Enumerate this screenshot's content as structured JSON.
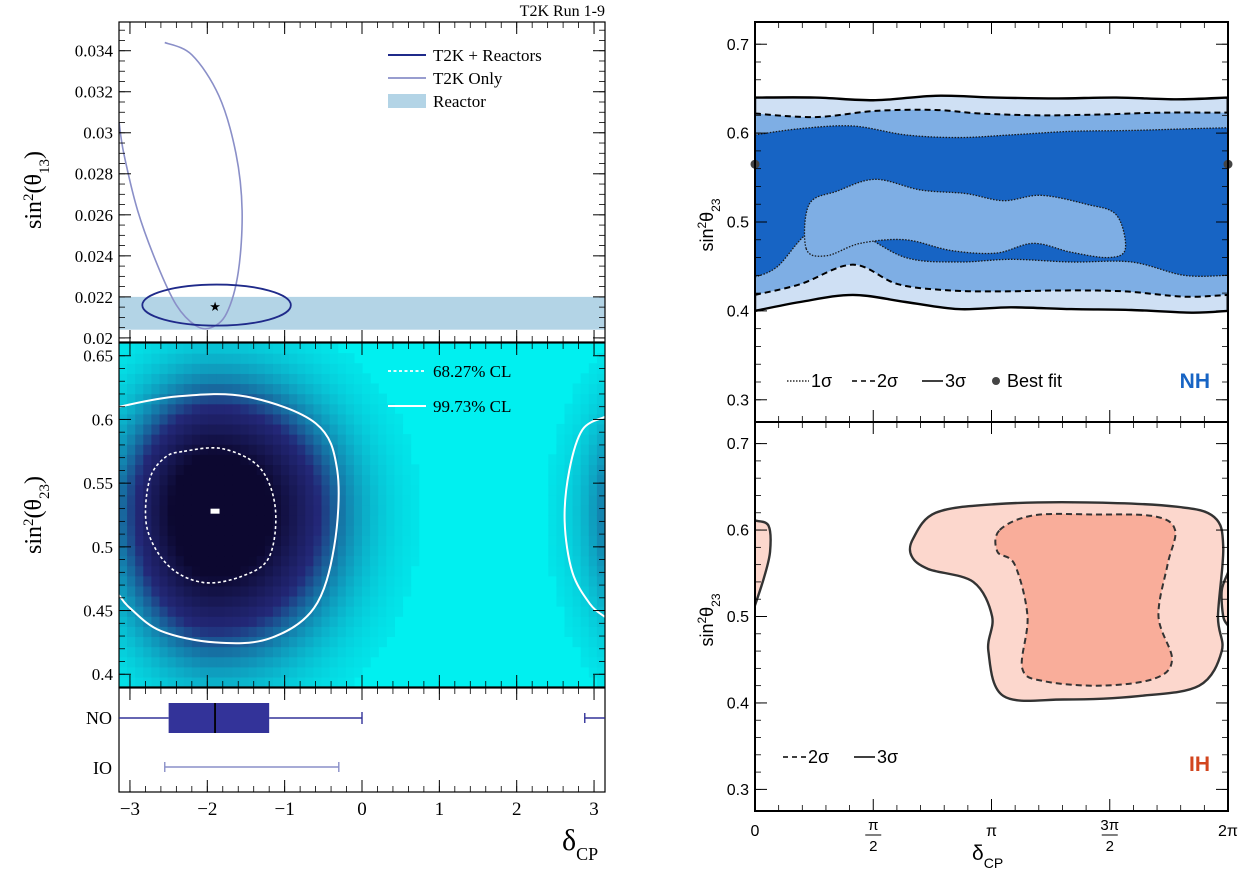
{
  "colors": {
    "t2k_reactors": "#1f2a8a",
    "t2k_only": "#8a8fc8",
    "reactor_band": "#b3d4e6",
    "posterior_bg": "#00f0f0",
    "posterior_core": "#0c0830",
    "box_fill": "#333399",
    "nh_1sigma": "#1764c4",
    "nh_2sigma": "#7eaee4",
    "nh_3sigma": "#cfe0f4",
    "ih_2sigma": "#f9ad9a",
    "ih_3sigma": "#fcd7cd",
    "nh_label": "#1764c4",
    "ih_label": "#d2451e"
  },
  "chart_data": [
    {
      "id": "left-top",
      "type": "contour",
      "title": "T2K Run 1-9",
      "ylabel_main": "sin",
      "ylabel_sup": "2",
      "ylabel_tail": "(θ",
      "ylabel_sub": "13",
      "ylabel_close": ")",
      "xlim": [
        -3.14159,
        3.14159
      ],
      "ylim": [
        0.0198,
        0.0354
      ],
      "yticks": [
        0.02,
        0.022,
        0.024,
        0.026,
        0.028,
        0.03,
        0.032,
        0.034
      ],
      "yticklabels": [
        "0.02",
        "0.022",
        "0.024",
        "0.026",
        "0.028",
        "0.03",
        "0.032",
        "0.034"
      ],
      "reactor_band": [
        0.0204,
        0.022
      ],
      "best_fit": {
        "x": -1.9,
        "y": 0.02155
      },
      "legend": {
        "position": "top-right",
        "entries": [
          "T2K + Reactors",
          "T2K Only",
          "Reactor"
        ]
      },
      "series": [
        {
          "name": "T2K Only",
          "points": [
            [
              -2.55,
              0.0344
            ],
            [
              -2.2,
              0.0338
            ],
            [
              -1.85,
              0.0318
            ],
            [
              -1.63,
              0.029
            ],
            [
              -1.55,
              0.0262
            ],
            [
              -1.6,
              0.0232
            ],
            [
              -1.75,
              0.0212
            ],
            [
              -1.95,
              0.0205
            ],
            [
              -2.15,
              0.0206
            ],
            [
              -2.4,
              0.0216
            ],
            [
              -2.65,
              0.0236
            ],
            [
              -2.9,
              0.0262
            ],
            [
              -3.08,
              0.029
            ],
            [
              -3.14,
              0.0305
            ]
          ],
          "wrap_points": [
            [
              3.14,
              0.0305
            ],
            [
              3.14,
              0.0298
            ]
          ]
        },
        {
          "name": "T2K + Reactors",
          "ellipse": {
            "cx": -1.88,
            "cy": 0.0216,
            "rx": 0.96,
            "ry": 0.001
          }
        }
      ]
    },
    {
      "id": "left-middle",
      "type": "heatmap",
      "ylabel_main": "sin",
      "ylabel_sup": "2",
      "ylabel_tail": "(θ",
      "ylabel_sub": "23",
      "ylabel_close": ")",
      "xlim": [
        -3.14159,
        3.14159
      ],
      "ylim": [
        0.39,
        0.66
      ],
      "yticks": [
        0.4,
        0.45,
        0.5,
        0.55,
        0.6,
        0.65
      ],
      "yticklabels": [
        "0.4",
        "0.45",
        "0.5",
        "0.55",
        "0.6",
        "0.65"
      ],
      "peak": {
        "x": -1.9,
        "y": 0.528
      },
      "legend": {
        "position": "top-right",
        "entries": [
          "68.27% CL",
          "99.73% CL"
        ]
      },
      "contour_68": [
        [
          -2.3,
          0.575
        ],
        [
          -1.8,
          0.577
        ],
        [
          -1.32,
          0.562
        ],
        [
          -1.12,
          0.53
        ],
        [
          -1.2,
          0.492
        ],
        [
          -1.55,
          0.477
        ],
        [
          -2.05,
          0.472
        ],
        [
          -2.5,
          0.485
        ],
        [
          -2.78,
          0.515
        ],
        [
          -2.75,
          0.552
        ],
        [
          -2.55,
          0.57
        ]
      ],
      "contour_997": [
        [
          -3.14,
          0.61
        ],
        [
          -2.4,
          0.618
        ],
        [
          -1.5,
          0.618
        ],
        [
          -0.6,
          0.597
        ],
        [
          -0.32,
          0.56
        ],
        [
          -0.36,
          0.5
        ],
        [
          -0.62,
          0.452
        ],
        [
          -1.2,
          0.428
        ],
        [
          -1.9,
          0.425
        ],
        [
          -2.6,
          0.434
        ],
        [
          -3.0,
          0.452
        ],
        [
          -3.14,
          0.462
        ]
      ],
      "contour_997_wrap": [
        [
          3.14,
          0.602
        ],
        [
          2.85,
          0.592
        ],
        [
          2.68,
          0.56
        ],
        [
          2.62,
          0.52
        ],
        [
          2.72,
          0.48
        ],
        [
          2.95,
          0.455
        ],
        [
          3.14,
          0.445
        ]
      ]
    },
    {
      "id": "left-bottom",
      "type": "box",
      "xlabel_main": "δ",
      "xlabel_sub": "CP",
      "xlim": [
        -3.14159,
        3.14159
      ],
      "xticks": [
        -3,
        -2,
        -1,
        0,
        1,
        2,
        3
      ],
      "xticklabels": [
        "−3",
        "−2",
        "−1",
        "0",
        "1",
        "2",
        "3"
      ],
      "categories": [
        "NO",
        "IO"
      ],
      "NO": {
        "whisker_low": -3.14,
        "q1": -2.5,
        "median": -1.9,
        "q3": -1.2,
        "whisker_high": 0.0,
        "wrap_low": 2.88,
        "wrap_high": 3.14
      },
      "IO": {
        "whisker_low": -2.55,
        "whisker_high": -0.3
      }
    },
    {
      "id": "right-top",
      "type": "contour",
      "ylabel_main": "sin",
      "ylabel_sup": "2",
      "ylabel_tail": "θ",
      "ylabel_sub": "23",
      "xlim": [
        0,
        6.28318
      ],
      "ylim": [
        0.275,
        0.725
      ],
      "yticks": [
        0.3,
        0.4,
        0.5,
        0.6,
        0.7
      ],
      "yticklabels": [
        "0.3",
        "0.4",
        "0.5",
        "0.6",
        "0.7"
      ],
      "hierarchy_label": "NH",
      "legend": {
        "position": "bottom-left",
        "entries": [
          "1σ",
          "2σ",
          "3σ",
          "Best fit"
        ]
      },
      "best_fit": [
        {
          "x": 0,
          "y": 0.565
        },
        {
          "x": 6.28318,
          "y": 0.565
        }
      ],
      "sigma3_upper": [
        [
          0,
          0.64
        ],
        [
          0.8,
          0.64
        ],
        [
          1.6,
          0.637
        ],
        [
          2.4,
          0.642
        ],
        [
          3.2,
          0.64
        ],
        [
          4.0,
          0.639
        ],
        [
          4.8,
          0.64
        ],
        [
          5.6,
          0.638
        ],
        [
          6.28,
          0.64
        ]
      ],
      "sigma3_lower": [
        [
          0,
          0.4
        ],
        [
          0.6,
          0.41
        ],
        [
          1.3,
          0.418
        ],
        [
          2.0,
          0.41
        ],
        [
          2.7,
          0.402
        ],
        [
          3.4,
          0.404
        ],
        [
          4.2,
          0.402
        ],
        [
          5.0,
          0.401
        ],
        [
          5.8,
          0.398
        ],
        [
          6.28,
          0.4
        ]
      ],
      "sigma2_upper": [
        [
          0,
          0.622
        ],
        [
          0.8,
          0.618
        ],
        [
          1.6,
          0.625
        ],
        [
          2.4,
          0.626
        ],
        [
          3.0,
          0.622
        ],
        [
          3.8,
          0.62
        ],
        [
          4.6,
          0.621
        ],
        [
          5.4,
          0.623
        ],
        [
          6.28,
          0.623
        ]
      ],
      "sigma2_lower": [
        [
          0,
          0.418
        ],
        [
          0.6,
          0.43
        ],
        [
          1.3,
          0.452
        ],
        [
          1.9,
          0.43
        ],
        [
          2.6,
          0.423
        ],
        [
          3.3,
          0.422
        ],
        [
          4.1,
          0.423
        ],
        [
          4.9,
          0.422
        ],
        [
          5.7,
          0.416
        ],
        [
          6.28,
          0.418
        ]
      ],
      "sigma1_upper": [
        [
          0,
          0.598
        ],
        [
          0.6,
          0.605
        ],
        [
          1.3,
          0.608
        ],
        [
          2.0,
          0.598
        ],
        [
          2.7,
          0.595
        ],
        [
          3.4,
          0.598
        ],
        [
          4.2,
          0.602
        ],
        [
          5.0,
          0.603
        ],
        [
          5.8,
          0.605
        ],
        [
          6.28,
          0.606
        ]
      ],
      "sigma1_lower": [
        [
          0,
          0.438
        ],
        [
          0.3,
          0.45
        ],
        [
          0.75,
          0.49
        ],
        [
          1.3,
          0.49
        ],
        [
          2.0,
          0.46
        ],
        [
          2.7,
          0.455
        ],
        [
          3.4,
          0.458
        ],
        [
          4.2,
          0.455
        ],
        [
          5.0,
          0.455
        ],
        [
          5.7,
          0.44
        ],
        [
          6.28,
          0.44
        ]
      ],
      "sigma1_island": [
        [
          0.68,
          0.47
        ],
        [
          0.72,
          0.52
        ],
        [
          1.1,
          0.535
        ],
        [
          1.6,
          0.548
        ],
        [
          2.2,
          0.536
        ],
        [
          2.8,
          0.532
        ],
        [
          3.3,
          0.524
        ],
        [
          3.8,
          0.53
        ],
        [
          4.4,
          0.52
        ],
        [
          4.8,
          0.508
        ],
        [
          4.92,
          0.47
        ],
        [
          4.7,
          0.46
        ],
        [
          4.2,
          0.466
        ],
        [
          3.7,
          0.476
        ],
        [
          3.2,
          0.465
        ],
        [
          2.6,
          0.468
        ],
        [
          2.0,
          0.48
        ],
        [
          1.4,
          0.476
        ],
        [
          0.95,
          0.462
        ]
      ]
    },
    {
      "id": "right-bottom",
      "type": "contour",
      "ylabel_main": "sin",
      "ylabel_sup": "2",
      "ylabel_tail": "θ",
      "ylabel_sub": "23",
      "xlabel_main": "δ",
      "xlabel_sub": "CP",
      "xlim": [
        0,
        6.28318
      ],
      "ylim": [
        0.275,
        0.725
      ],
      "yticks": [
        0.3,
        0.4,
        0.5,
        0.6,
        0.7
      ],
      "yticklabels": [
        "0.3",
        "0.4",
        "0.5",
        "0.6",
        "0.7"
      ],
      "xticks": [
        0,
        1.5708,
        3.14159,
        4.71239,
        6.28318
      ],
      "xticklabels": [
        "0",
        "π/2",
        "π",
        "3π/2",
        "2π"
      ],
      "hierarchy_label": "IH",
      "legend": {
        "position": "bottom-left",
        "entries": [
          "2σ",
          "3σ"
        ]
      },
      "sigma3_main": [
        [
          2.1,
          0.59
        ],
        [
          2.4,
          0.62
        ],
        [
          3.2,
          0.63
        ],
        [
          4.4,
          0.632
        ],
        [
          5.6,
          0.627
        ],
        [
          6.1,
          0.615
        ],
        [
          6.22,
          0.58
        ],
        [
          6.15,
          0.5
        ],
        [
          6.2,
          0.46
        ],
        [
          5.9,
          0.42
        ],
        [
          5.1,
          0.408
        ],
        [
          4.1,
          0.404
        ],
        [
          3.3,
          0.408
        ],
        [
          3.1,
          0.46
        ],
        [
          3.15,
          0.5
        ],
        [
          2.9,
          0.54
        ],
        [
          2.3,
          0.555
        ],
        [
          2.08,
          0.57
        ]
      ],
      "sigma2_main": [
        [
          3.25,
          0.6
        ],
        [
          3.7,
          0.617
        ],
        [
          4.5,
          0.618
        ],
        [
          5.3,
          0.616
        ],
        [
          5.58,
          0.6
        ],
        [
          5.48,
          0.56
        ],
        [
          5.36,
          0.5
        ],
        [
          5.54,
          0.45
        ],
        [
          5.3,
          0.428
        ],
        [
          4.6,
          0.42
        ],
        [
          3.85,
          0.425
        ],
        [
          3.55,
          0.44
        ],
        [
          3.62,
          0.5
        ],
        [
          3.45,
          0.56
        ],
        [
          3.22,
          0.575
        ]
      ],
      "sigma3_left": [
        [
          0,
          0.611
        ],
        [
          0.18,
          0.605
        ],
        [
          0.2,
          0.575
        ],
        [
          0.12,
          0.545
        ],
        [
          0,
          0.513
        ]
      ],
      "sigma3_right": [
        [
          6.28,
          0.55
        ],
        [
          6.2,
          0.53
        ],
        [
          6.22,
          0.5
        ],
        [
          6.28,
          0.49
        ]
      ]
    }
  ]
}
